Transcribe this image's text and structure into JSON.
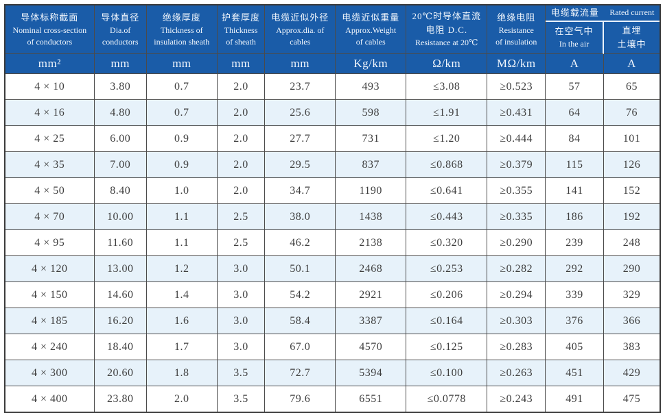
{
  "colors": {
    "header_bg": "#1A5CA8",
    "stripe": "#E7F2FA",
    "grid": "#4B4B4B",
    "header_text": "#F2F7FD",
    "body_text": "#3F3F3F"
  },
  "table": {
    "header": {
      "columns": [
        {
          "zh": "导体标称截面",
          "en1": "Nominal cross-section",
          "en2": "of conductors"
        },
        {
          "zh": "导体直径",
          "en1": "Dia.of",
          "en2": "conductors"
        },
        {
          "zh": "绝缘厚度",
          "en1": "Thickness of",
          "en2": "insulation sheath"
        },
        {
          "zh": "护套厚度",
          "en1": "Thickness",
          "en2": "of sheath"
        },
        {
          "zh": "电缆近似外径",
          "en1": "Approx.dia. of",
          "en2": "cables"
        },
        {
          "zh": "电缆近似重量",
          "en1": "Approx.Weight",
          "en2": "of cables"
        },
        {
          "zh": "20℃时导体直流",
          "en1": "电阻 D.C.",
          "en2": "Resistance at 20℃"
        },
        {
          "zh": "绝缘电阻",
          "en1": "Resistance",
          "en2": "of insulation"
        }
      ],
      "current_group": {
        "title_zh": "电缆载流量",
        "title_en": "Rated current",
        "sub_air_zh": "在空气中",
        "sub_air_en": "In the air",
        "sub_buried_zh": "直埋",
        "sub_buried_zh2": "土壤中"
      }
    },
    "units": [
      "mm²",
      "mm",
      "mm",
      "mm",
      "mm",
      "Kg/km",
      "Ω/km",
      "MΩ/km",
      "A",
      "A"
    ],
    "rows": [
      [
        "4 × 10",
        "3.80",
        "0.7",
        "2.0",
        "23.7",
        "493",
        "≤3.08",
        "≥0.523",
        "57",
        "65"
      ],
      [
        "4 × 16",
        "4.80",
        "0.7",
        "2.0",
        "25.6",
        "598",
        "≤1.91",
        "≥0.431",
        "64",
        "76"
      ],
      [
        "4 × 25",
        "6.00",
        "0.9",
        "2.0",
        "27.7",
        "731",
        "≤1.20",
        "≥0.444",
        "84",
        "101"
      ],
      [
        "4 × 35",
        "7.00",
        "0.9",
        "2.0",
        "29.5",
        "837",
        "≤0.868",
        "≥0.379",
        "115",
        "126"
      ],
      [
        "4 × 50",
        "8.40",
        "1.0",
        "2.0",
        "34.7",
        "1190",
        "≤0.641",
        "≥0.355",
        "141",
        "152"
      ],
      [
        "4 × 70",
        "10.00",
        "1.1",
        "2.5",
        "38.0",
        "1438",
        "≤0.443",
        "≥0.335",
        "186",
        "192"
      ],
      [
        "4 × 95",
        "11.60",
        "1.1",
        "2.5",
        "46.2",
        "2138",
        "≤0.320",
        "≥0.290",
        "239",
        "248"
      ],
      [
        "4 × 120",
        "13.00",
        "1.2",
        "3.0",
        "50.1",
        "2468",
        "≤0.253",
        "≥0.282",
        "292",
        "290"
      ],
      [
        "4 × 150",
        "14.60",
        "1.4",
        "3.0",
        "54.2",
        "2921",
        "≤0.206",
        "≥0.294",
        "339",
        "329"
      ],
      [
        "4 × 185",
        "16.20",
        "1.6",
        "3.0",
        "58.4",
        "3387",
        "≤0.164",
        "≥0.303",
        "376",
        "366"
      ],
      [
        "4 × 240",
        "18.40",
        "1.7",
        "3.0",
        "67.0",
        "4570",
        "≤0.125",
        "≥0.283",
        "405",
        "383"
      ],
      [
        "4 × 300",
        "20.60",
        "1.8",
        "3.5",
        "72.7",
        "5394",
        "≤0.100",
        "≥0.263",
        "451",
        "429"
      ],
      [
        "4 × 400",
        "23.80",
        "2.0",
        "3.5",
        "79.6",
        "6551",
        "≤0.0778",
        "≥0.243",
        "491",
        "475"
      ]
    ]
  }
}
